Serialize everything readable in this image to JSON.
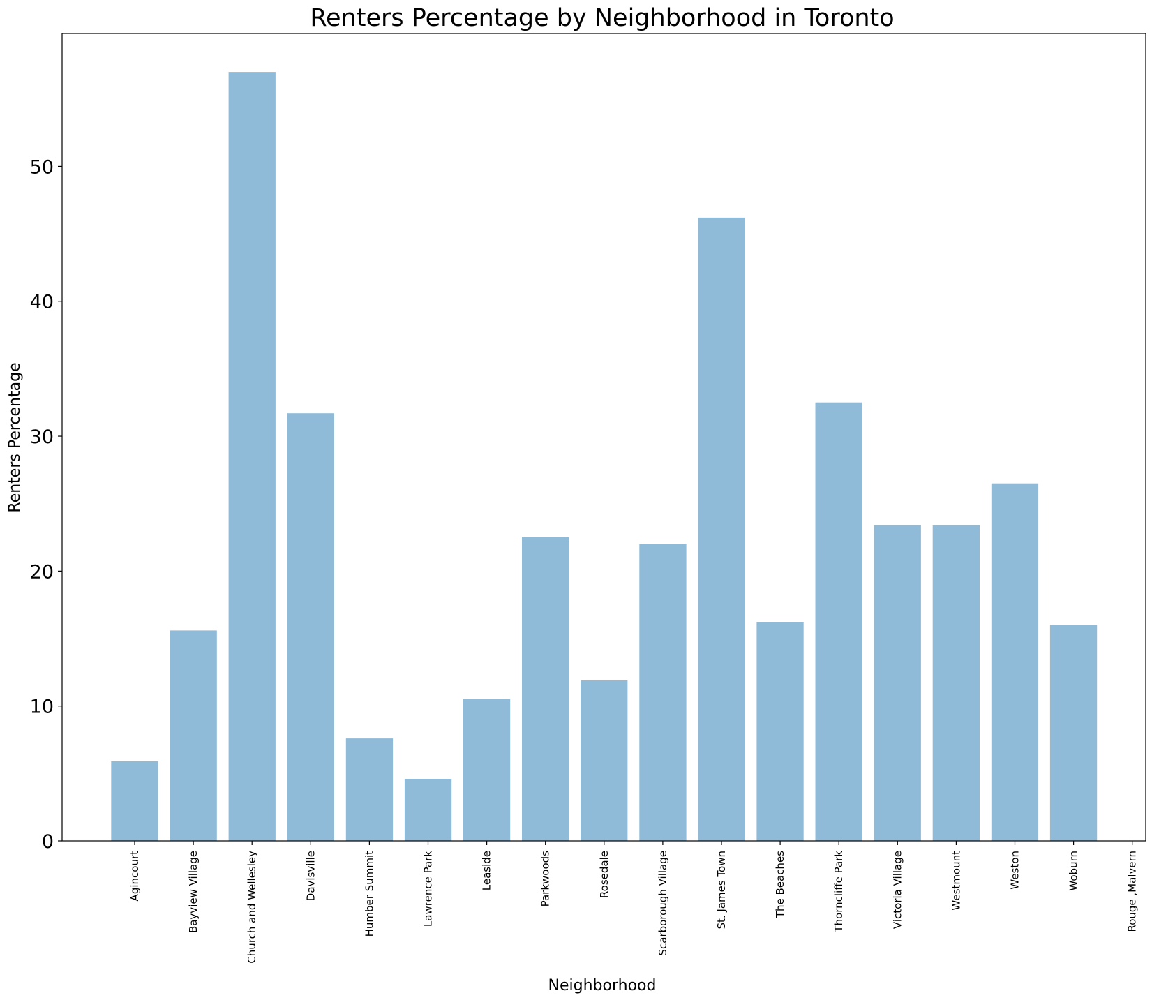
{
  "chart_data": {
    "type": "bar",
    "title": "Renters Percentage by Neighborhood in Toronto",
    "xlabel": "Neighborhood",
    "ylabel": "Renters Percentage",
    "categories": [
      "Agincourt",
      "Bayview Village",
      "Church and Wellesley",
      "Davisville",
      "Humber Summit",
      "Lawrence Park",
      "Leaside",
      "Parkwoods",
      "Rosedale",
      "Scarborough Village",
      "St. James Town",
      "The Beaches",
      "Thorncliffe Park",
      "Victoria Village",
      "Westmount",
      "Weston",
      "Woburn",
      "Rouge ,Malvern"
    ],
    "values": [
      5.9,
      15.6,
      57.0,
      31.7,
      7.6,
      4.6,
      10.5,
      22.5,
      11.9,
      22.0,
      46.2,
      16.2,
      32.5,
      23.4,
      23.4,
      26.5,
      16.0,
      0
    ],
    "ylim": [
      0,
      59.85
    ],
    "yticks": [
      "0",
      "10",
      "20",
      "30",
      "40",
      "50"
    ],
    "grid": false,
    "bar_color": "#1f77b4"
  }
}
